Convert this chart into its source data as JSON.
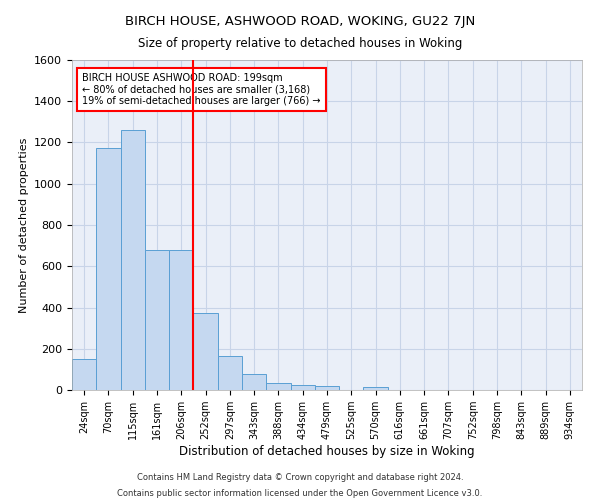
{
  "title1": "BIRCH HOUSE, ASHWOOD ROAD, WOKING, GU22 7JN",
  "title2": "Size of property relative to detached houses in Woking",
  "xlabel": "Distribution of detached houses by size in Woking",
  "ylabel": "Number of detached properties",
  "bar_color": "#c5d8f0",
  "bar_edge_color": "#5a9fd4",
  "categories": [
    "24sqm",
    "70sqm",
    "115sqm",
    "161sqm",
    "206sqm",
    "252sqm",
    "297sqm",
    "343sqm",
    "388sqm",
    "434sqm",
    "479sqm",
    "525sqm",
    "570sqm",
    "616sqm",
    "661sqm",
    "707sqm",
    "752sqm",
    "798sqm",
    "843sqm",
    "889sqm",
    "934sqm"
  ],
  "values": [
    150,
    1175,
    1260,
    680,
    680,
    375,
    165,
    80,
    35,
    25,
    20,
    0,
    15,
    0,
    0,
    0,
    0,
    0,
    0,
    0,
    0
  ],
  "red_line_x": 4.5,
  "annotation_text": "BIRCH HOUSE ASHWOOD ROAD: 199sqm\n← 80% of detached houses are smaller (3,168)\n19% of semi-detached houses are larger (766) →",
  "annotation_box_color": "white",
  "annotation_border_color": "red",
  "red_line_color": "red",
  "ylim": [
    0,
    1600
  ],
  "yticks": [
    0,
    200,
    400,
    600,
    800,
    1000,
    1200,
    1400,
    1600
  ],
  "grid_color": "#c8d4e8",
  "bg_color": "#eaeff8",
  "footer1": "Contains HM Land Registry data © Crown copyright and database right 2024.",
  "footer2": "Contains public sector information licensed under the Open Government Licence v3.0."
}
